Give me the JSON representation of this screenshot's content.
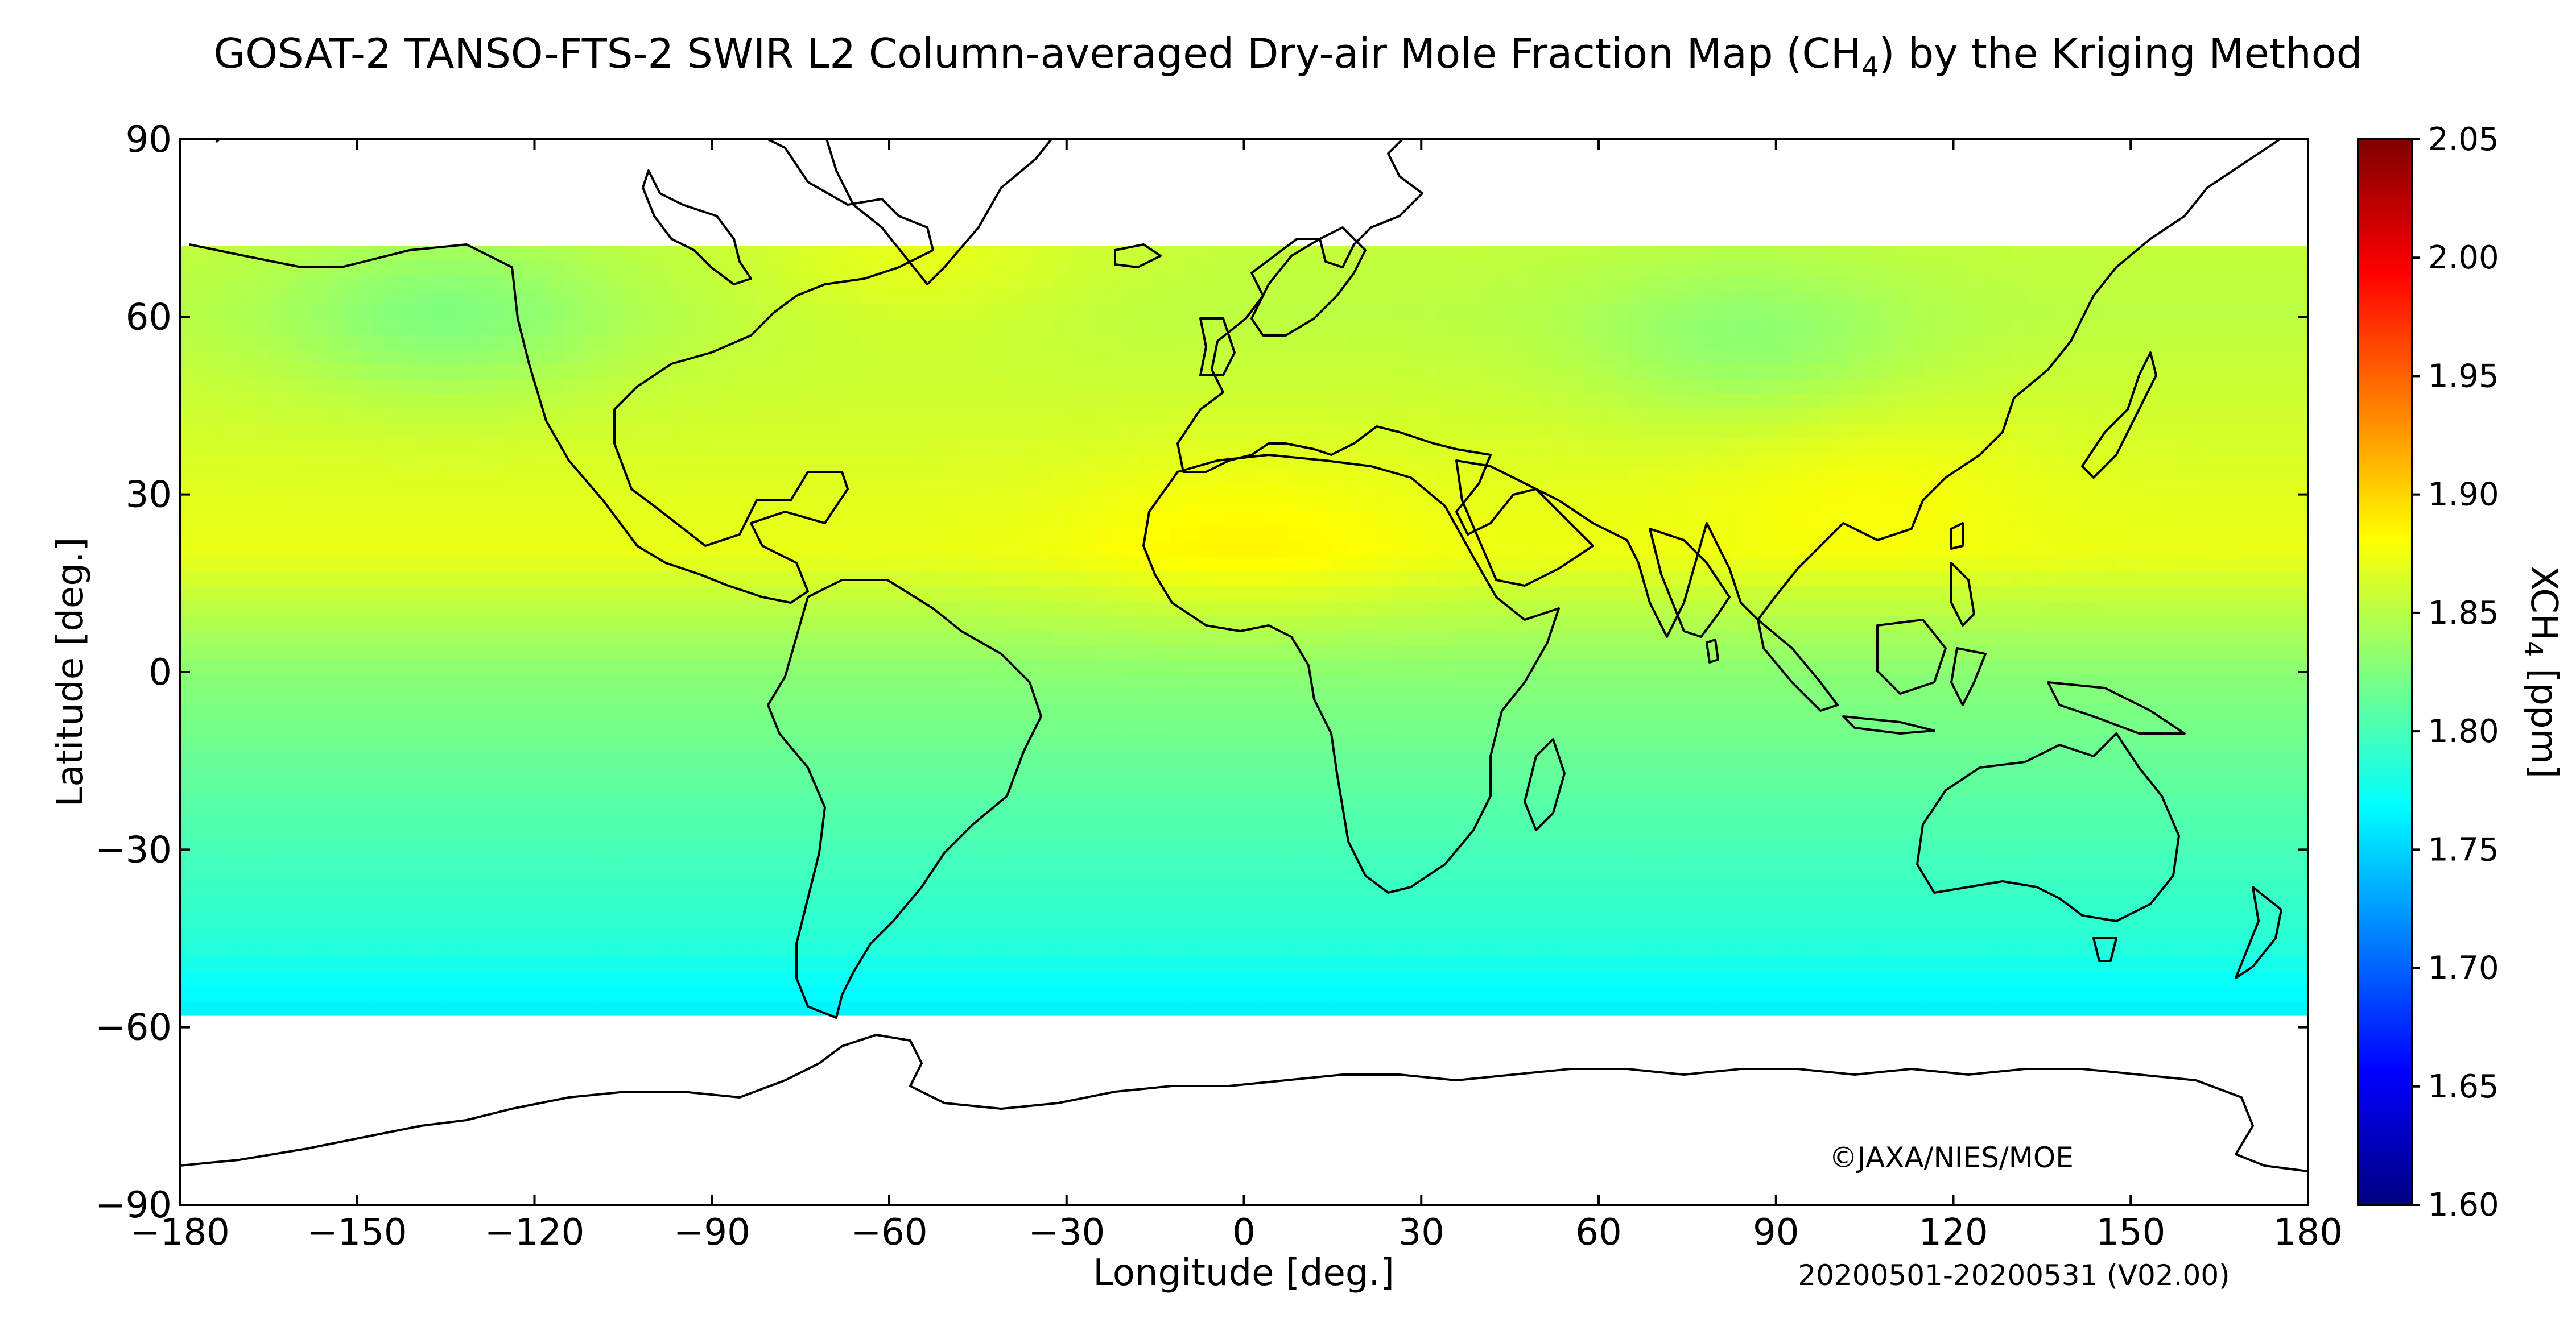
{
  "title": {
    "prefix": "GOSAT-2 TANSO-FTS-2 SWIR L2 Column-averaged Dry-air Mole Fraction Map (CH",
    "sub": "4",
    "suffix": ") by the Kriging Method"
  },
  "map": {
    "projection": "plate carree",
    "extent": {
      "lon": [
        -180,
        180
      ],
      "lat": [
        -90,
        90
      ]
    },
    "xlabel": "Longitude [deg.]",
    "ylabel": "Latitude [deg.]",
    "xticks": [
      "−180",
      "−150",
      "−120",
      "−90",
      "−60",
      "−30",
      "0",
      "30",
      "60",
      "90",
      "120",
      "150",
      "180"
    ],
    "xtick_values": [
      -180,
      -150,
      -120,
      -90,
      -60,
      -30,
      0,
      30,
      60,
      90,
      120,
      150,
      180
    ],
    "yticks": [
      "90",
      "60",
      "30",
      "0",
      "−30",
      "−60",
      "−90"
    ],
    "ytick_values": [
      90,
      60,
      30,
      0,
      -30,
      -60,
      -90
    ],
    "data_coverage_lat": [
      -56,
      72
    ],
    "copyright": "©JAXA/NIES/MOE",
    "period": "20200501-20200531 (V02.00)"
  },
  "chart_data": {
    "type": "heatmap",
    "variable": "XCH4",
    "units": "ppm",
    "grid_deg": 2.5,
    "vmin": 1.6,
    "vmax": 2.05,
    "lat_profile": [
      {
        "lat": 72,
        "value": 1.855
      },
      {
        "lat": 60,
        "value": 1.852
      },
      {
        "lat": 45,
        "value": 1.86
      },
      {
        "lat": 30,
        "value": 1.868
      },
      {
        "lat": 20,
        "value": 1.872
      },
      {
        "lat": 10,
        "value": 1.85
      },
      {
        "lat": 0,
        "value": 1.83
      },
      {
        "lat": -15,
        "value": 1.815
      },
      {
        "lat": -30,
        "value": 1.8
      },
      {
        "lat": -45,
        "value": 1.787
      },
      {
        "lat": -52,
        "value": 1.772
      },
      {
        "lat": -56,
        "value": 1.765
      }
    ],
    "regional_features": [
      {
        "lon": 0,
        "lat": 22,
        "value": 1.885
      },
      {
        "lon": 105,
        "lat": 32,
        "value": 1.878
      },
      {
        "lon": 60,
        "lat": 30,
        "value": 1.87
      },
      {
        "lon": -135,
        "lat": 60,
        "value": 1.825
      },
      {
        "lon": 85,
        "lat": 55,
        "value": 1.832
      },
      {
        "lon": -55,
        "lat": 70,
        "value": 1.87
      }
    ]
  },
  "colorbar": {
    "label_prefix": "XCH",
    "label_sub": "4",
    "label_suffix": " [ppm]",
    "ticks": [
      "2.05",
      "2.00",
      "1.95",
      "1.90",
      "1.85",
      "1.80",
      "1.75",
      "1.70",
      "1.65",
      "1.60"
    ],
    "tick_values": [
      2.05,
      2.0,
      1.95,
      1.9,
      1.85,
      1.8,
      1.75,
      1.7,
      1.65,
      1.6
    ],
    "colormap": "jet",
    "stops": [
      "#00007f",
      "#0000ff",
      "#007fff",
      "#00ffff",
      "#7fff7f",
      "#ffff00",
      "#ff7f00",
      "#ff0000",
      "#7f0000"
    ]
  }
}
